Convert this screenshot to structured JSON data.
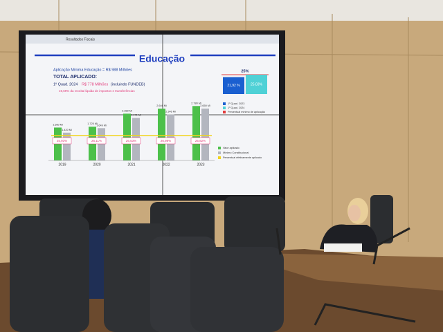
{
  "slide": {
    "browser_tab": "Resultados Fiscais",
    "title": "Educação",
    "minimum_line": "Aplicação Mínima Educação = R$ 988 Milhões",
    "total_label": "TOTAL APLICADO:",
    "total_period": "1º Quad. 2024",
    "total_value": "R$ 778 Milhões",
    "total_note": "(incluindo FUNDEB)",
    "percent_line": "19,69% da receita líquida de impostos e transferências",
    "chart": {
      "categories": [
        "2019",
        "2020",
        "2021",
        "2022",
        "2023"
      ],
      "series": [
        {
          "name": "Valor aplicado",
          "color": "#4cc04a",
          "values": [
            1680,
            1725,
            2389,
            2646,
            2780
          ],
          "value_labels": [
            "1.680 Mi",
            "1.725 Mi",
            "2.389 Mi",
            "2.646 Mi",
            "2.780 Mi"
          ]
        },
        {
          "name": "Mínimo Constitucional",
          "color": "#b3b6bf",
          "values": [
            1420,
            1649,
            2171,
            2346,
            2650
          ],
          "value_labels": [
            "1.420 Mi",
            "1.649 Mi",
            "2.171 Mi",
            "2.346 Mi",
            "2.650 Mi"
          ]
        }
      ],
      "line": {
        "name": "Percentual efetivamente aplicado",
        "color": "#f2d41c",
        "labels": [
          "25,93%",
          "26,11%",
          "26,53%",
          "26,98%",
          "25,82%"
        ]
      }
    },
    "side_chart": {
      "target": 25,
      "target_label": "25%",
      "values": [
        21.92,
        25.03
      ],
      "value_labels": [
        "21,92 %",
        "25,03%"
      ],
      "colors": [
        "#1a5fd0",
        "#4fd1d6"
      ],
      "legend": [
        "1º Quad. 2023",
        "1º Quad. 2024",
        "Percentual mínimo de aplicação"
      ]
    }
  }
}
